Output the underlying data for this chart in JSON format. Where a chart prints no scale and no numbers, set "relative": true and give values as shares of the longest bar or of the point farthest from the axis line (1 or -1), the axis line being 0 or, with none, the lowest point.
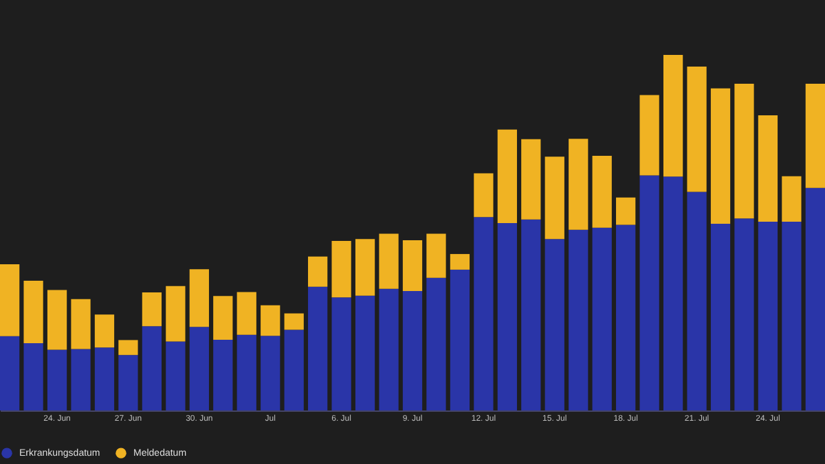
{
  "chart_data": {
    "type": "bar",
    "stacked": true,
    "relative": true,
    "legend": "bottom",
    "grid": false,
    "categories": [
      null,
      null,
      "24. Jun",
      null,
      null,
      "27. Jun",
      null,
      null,
      "30. Jun",
      null,
      null,
      "Jul",
      null,
      null,
      "6. Jul",
      null,
      null,
      "9. Jul",
      null,
      null,
      "12. Jul",
      null,
      null,
      "15. Jul",
      null,
      null,
      "18. Jul",
      null,
      null,
      "21. Jul",
      null,
      null,
      "24. Jul",
      null,
      null
    ],
    "series": [
      {
        "name": "Erkrankungsdatum",
        "color": "#2a35a8",
        "values": [
          0.209,
          0.189,
          0.171,
          0.173,
          0.177,
          0.156,
          0.237,
          0.194,
          0.235,
          0.199,
          0.213,
          0.21,
          0.227,
          0.348,
          0.318,
          0.323,
          0.342,
          0.336,
          0.373,
          0.396,
          0.544,
          0.527,
          0.537,
          0.482,
          0.508,
          0.514,
          0.522,
          0.661,
          0.658,
          0.615,
          0.525,
          0.54,
          0.531,
          0.531,
          0.626
        ]
      },
      {
        "name": "Meldedatum",
        "color": "#f0b323",
        "values": [
          0.202,
          0.176,
          0.168,
          0.14,
          0.093,
          0.042,
          0.095,
          0.156,
          0.162,
          0.123,
          0.12,
          0.086,
          0.046,
          0.085,
          0.159,
          0.159,
          0.155,
          0.143,
          0.124,
          0.044,
          0.123,
          0.263,
          0.226,
          0.232,
          0.256,
          0.202,
          0.077,
          0.226,
          0.342,
          0.352,
          0.381,
          0.379,
          0.299,
          0.128,
          0.293
        ]
      }
    ]
  }
}
